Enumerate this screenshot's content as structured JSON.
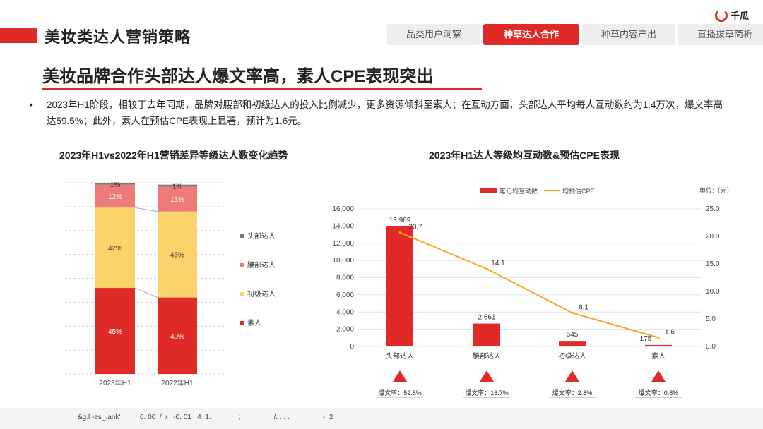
{
  "header": {
    "title": "美妆类达人营销策略",
    "logo_text": "千瓜",
    "tabs": [
      {
        "label": "品类用户洞察",
        "active": false
      },
      {
        "label": "种草达人合作",
        "active": true
      },
      {
        "label": "种草内容产出",
        "active": false
      },
      {
        "label": "直播拔草简析",
        "active": false
      }
    ]
  },
  "headline": "美妆品牌合作头部达人爆文率高，素人CPE表现突出",
  "bullet": "2023年H1阶段，相较于去年同期，品牌对腰部和初级达人的投入比例减少，更多资源倾斜至素人；在互动方面，头部达人平均每人互动数约为1.4万次，爆文率高达59.5%；此外，素人在预估CPE表现上显著，预计为1.6元。",
  "colors": {
    "accent": "#e02a27",
    "red": "#e02a27",
    "pink": "#ee7b79",
    "yellow": "#fad46a",
    "gray": "#777777",
    "orange": "#f6a820"
  },
  "chart_data": [
    {
      "type": "bar",
      "stacked": true,
      "percent": true,
      "title": "2023年H1vs2022年H1营销差异等级达人数变化趋势",
      "categories": [
        "2023年H1",
        "2022年H1"
      ],
      "series": [
        {
          "name": "素人",
          "values": [
            45,
            40
          ],
          "labels": [
            "45%",
            "40%"
          ],
          "color": "#e02a27"
        },
        {
          "name": "初级达人",
          "values": [
            42,
            45
          ],
          "labels": [
            "42%",
            "45%"
          ],
          "color": "#fad46a"
        },
        {
          "name": "腰部达人",
          "values": [
            12,
            13
          ],
          "labels": [
            "12%",
            "13%"
          ],
          "color": "#ee7b79"
        },
        {
          "name": "头部达人",
          "values": [
            1,
            1
          ],
          "labels": [
            "1%",
            "1%"
          ],
          "color": "#777777"
        }
      ],
      "legend": [
        "头部达人",
        "腰部达人",
        "初级达人",
        "素人"
      ],
      "legend_placement": "right"
    },
    {
      "type": "bar",
      "title": "2023年H1达人等级均互动数&预估CPE表现",
      "unit_note": "单位:（元）",
      "categories": [
        "头部达人",
        "腰部达人",
        "初级达人",
        "素人"
      ],
      "series": [
        {
          "name": "笔记均互动数",
          "type": "bar",
          "axis": "left",
          "values": [
            13969,
            2661,
            645,
            175
          ],
          "labels": [
            "13,969",
            "2,661",
            "645",
            "175"
          ],
          "color": "#e02a27"
        },
        {
          "name": "均预估CPE",
          "type": "line",
          "axis": "right",
          "values": [
            20.7,
            14.1,
            6.1,
            1.6
          ],
          "labels": [
            "20.7",
            "14.1",
            "6.1",
            "1.6"
          ],
          "color": "#f6a820"
        }
      ],
      "ylim": [
        0,
        16000
      ],
      "y_ticks": [
        "0",
        "2,000",
        "4,000",
        "6,000",
        "8,000",
        "10,000",
        "12,000",
        "14,000",
        "16,000"
      ],
      "y2lim": [
        0,
        25
      ],
      "y2_ticks": [
        "0.0",
        "5.0",
        "10.0",
        "15.0",
        "20.0",
        "25.0"
      ],
      "grid": true,
      "legend_placement": "top",
      "viral_rates": [
        "爆文率：59.5%",
        "爆文率：16.7%",
        "爆文率：2.8%",
        "爆文率：0.8%"
      ]
    }
  ],
  "footer_text": "&g.l -es_.ank'          0. 00  /  /   -0. 01   4  1.              ;                 /. . . .                 -  2"
}
